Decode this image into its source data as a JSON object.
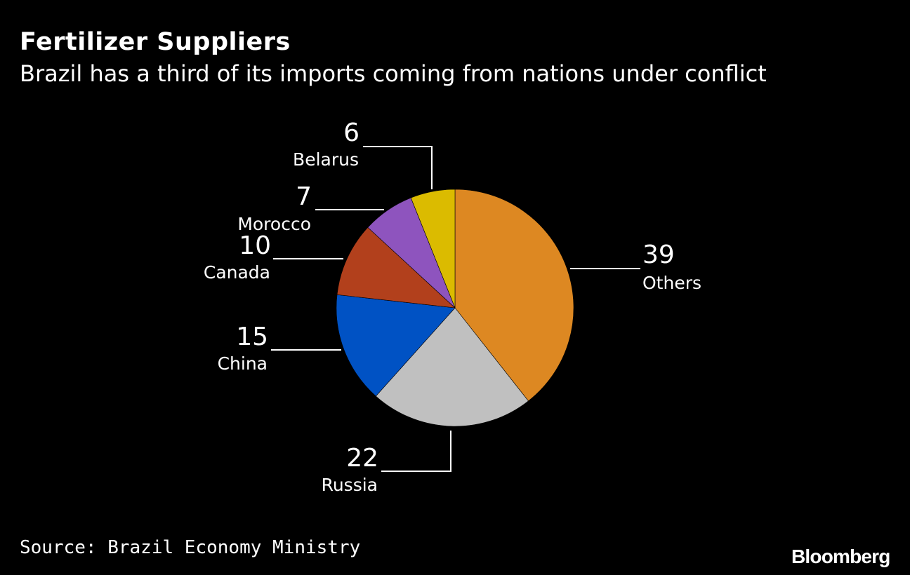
{
  "header": {
    "title": "Fertilizer Suppliers",
    "subtitle": "Brazil has a third of its imports coming from nations under conflict"
  },
  "footer": {
    "source": "Source: Brazil Economy Ministry",
    "brand": "Bloomberg"
  },
  "chart_data": {
    "type": "pie",
    "title": "Fertilizer Suppliers",
    "subtitle": "Brazil has a third of its imports coming from nations under conflict",
    "slices": [
      {
        "label": "Others",
        "value": 39,
        "color": "#DD8822"
      },
      {
        "label": "Russia",
        "value": 22,
        "color": "#C0C0C0"
      },
      {
        "label": "China",
        "value": 15,
        "color": "#0052C4"
      },
      {
        "label": "Canada",
        "value": 10,
        "color": "#B2401C"
      },
      {
        "label": "Morocco",
        "value": 7,
        "color": "#8E54BE"
      },
      {
        "label": "Belarus",
        "value": 6,
        "color": "#DBBB00"
      }
    ],
    "start": "12 o'clock",
    "direction": "clockwise",
    "labels": "outside with leader lines"
  }
}
